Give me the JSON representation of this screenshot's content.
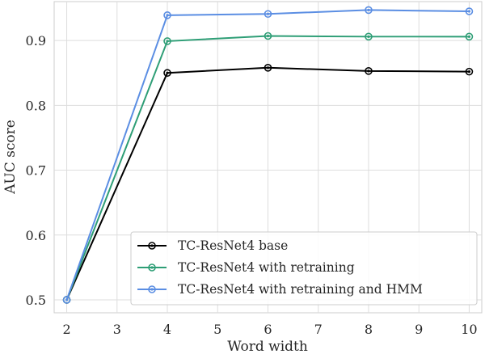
{
  "chart_data": {
    "type": "line",
    "title": "",
    "xlabel": "Word width",
    "ylabel": "AUC score",
    "xlim": [
      1.75,
      10.25
    ],
    "ylim": [
      0.48,
      0.96
    ],
    "xticks": [
      2,
      3,
      4,
      5,
      6,
      7,
      8,
      9,
      10
    ],
    "xtick_labels": [
      "2",
      "3",
      "4",
      "5",
      "6",
      "7",
      "8",
      "9",
      "10"
    ],
    "yticks": [
      0.5,
      0.6,
      0.7,
      0.8,
      0.9
    ],
    "ytick_labels": [
      "0.5",
      "0.6",
      "0.7",
      "0.8",
      "0.9"
    ],
    "grid": true,
    "legend_position": "lower-right",
    "x": [
      2,
      4,
      6,
      8,
      10
    ],
    "series": [
      {
        "name": "TC-ResNet4 base",
        "color": "#000000",
        "values": [
          0.5,
          0.85,
          0.858,
          0.853,
          0.852
        ]
      },
      {
        "name": "TC-ResNet4 with retraining",
        "color": "#2e9e76",
        "values": [
          0.5,
          0.899,
          0.907,
          0.906,
          0.906
        ]
      },
      {
        "name": "TC-ResNet4 with retraining and HMM",
        "color": "#5b8ee3",
        "values": [
          0.5,
          0.939,
          0.941,
          0.947,
          0.945
        ]
      }
    ]
  }
}
